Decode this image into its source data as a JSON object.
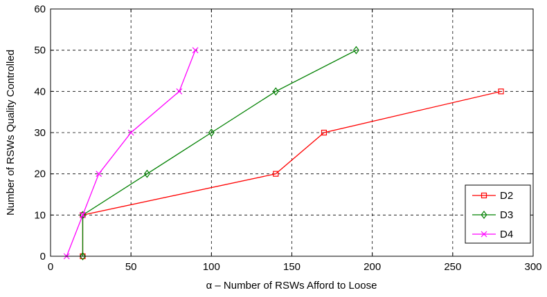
{
  "chart_data": {
    "type": "line",
    "title": "",
    "xlabel": "α – Number of RSWs Afford to Loose",
    "ylabel": "Number of RSWs Quality Controlled",
    "xlim": [
      0,
      300
    ],
    "ylim": [
      0,
      60
    ],
    "xticks": [
      "0",
      "50",
      "100",
      "150",
      "200",
      "250",
      "300"
    ],
    "yticks": [
      "0",
      "10",
      "20",
      "30",
      "40",
      "50",
      "60"
    ],
    "grid": true,
    "legend_position": "bottom-right",
    "series": [
      {
        "name": "D2",
        "color": "#ff0000",
        "marker": "square",
        "x": [
          20,
          20,
          140,
          170,
          280
        ],
        "y": [
          0,
          10,
          20,
          30,
          40
        ]
      },
      {
        "name": "D3",
        "color": "#008000",
        "marker": "diamond",
        "x": [
          20,
          20,
          60,
          100,
          140,
          190
        ],
        "y": [
          0,
          10,
          20,
          30,
          40,
          50
        ]
      },
      {
        "name": "D4",
        "color": "#ff00ff",
        "marker": "x",
        "x": [
          10,
          20,
          30,
          50,
          80,
          90
        ],
        "y": [
          0,
          10,
          20,
          30,
          40,
          50
        ]
      }
    ]
  }
}
